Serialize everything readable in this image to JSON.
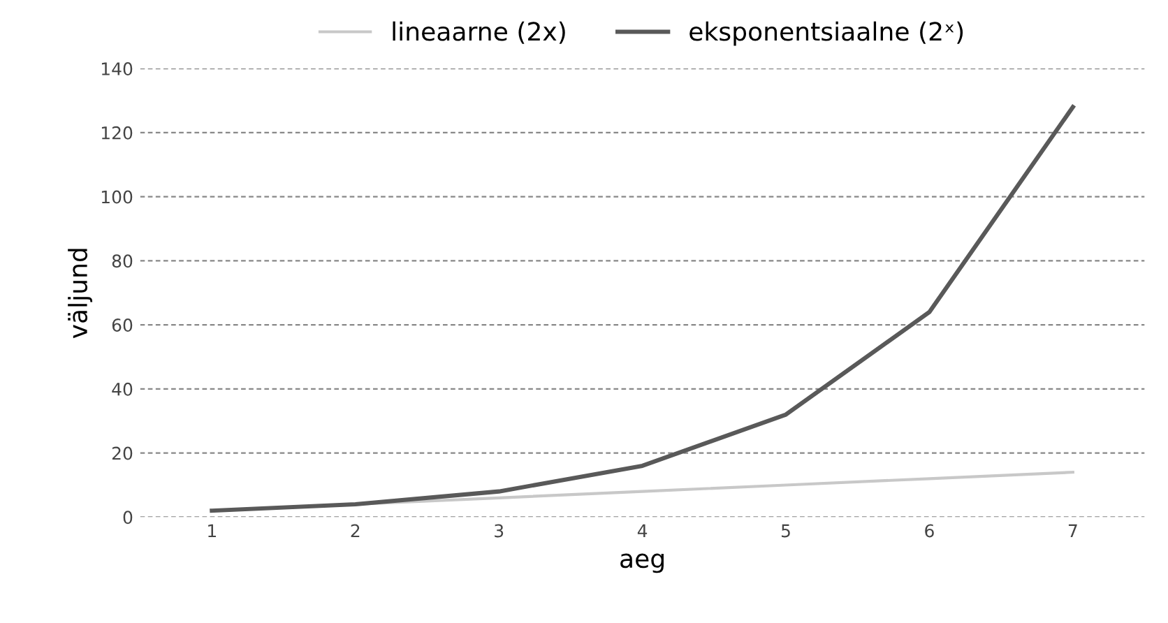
{
  "chart_data": {
    "type": "line",
    "xlabel": "aeg",
    "ylabel": "väljund",
    "categories": [
      "1",
      "2",
      "3",
      "4",
      "5",
      "6",
      "7"
    ],
    "series": [
      {
        "name": "lineaarne (2x)",
        "color": "#c8c8c8",
        "values": [
          2,
          4,
          6,
          8,
          10,
          12,
          14
        ]
      },
      {
        "name": "eksponentsiaalne (2ˣ)",
        "color": "#595959",
        "values": [
          2,
          4,
          8,
          16,
          32,
          64,
          128
        ]
      }
    ],
    "ylim": [
      0,
      140
    ],
    "yticks": [
      0,
      20,
      40,
      60,
      80,
      100,
      120,
      140
    ],
    "grid": "y",
    "legend": "top",
    "marker": "none",
    "line_style": "solid"
  }
}
